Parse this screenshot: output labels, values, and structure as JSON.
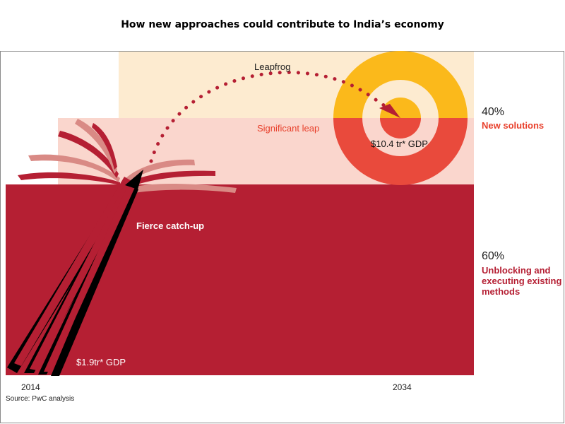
{
  "title": "How new approaches could contribute to India’s economy",
  "tiers": {
    "leapfrog": "Leapfrog",
    "significant_leap": "Significant leap",
    "fierce_catchup": "Fierce catch-up"
  },
  "gdp": {
    "start": "$1.9tr* GDP",
    "end": "$10.4 tr* GDP"
  },
  "years": {
    "start": "2014",
    "end": "2034"
  },
  "shares": {
    "new_solutions_pct": "40%",
    "new_solutions_label": "New solutions",
    "existing_pct": "60%",
    "existing_label": "Unblocking and executing existing methods"
  },
  "source": "Source: PwC analysis",
  "colors": {
    "leapfrog_band": "#fdebd0",
    "leap_band": "#fad6cd",
    "catchup_band": "#b51f33",
    "target_yellow": "#fbb91b",
    "target_red": "#e94a3c",
    "arrow": "#000000",
    "accent_orange": "#e8402c"
  }
}
